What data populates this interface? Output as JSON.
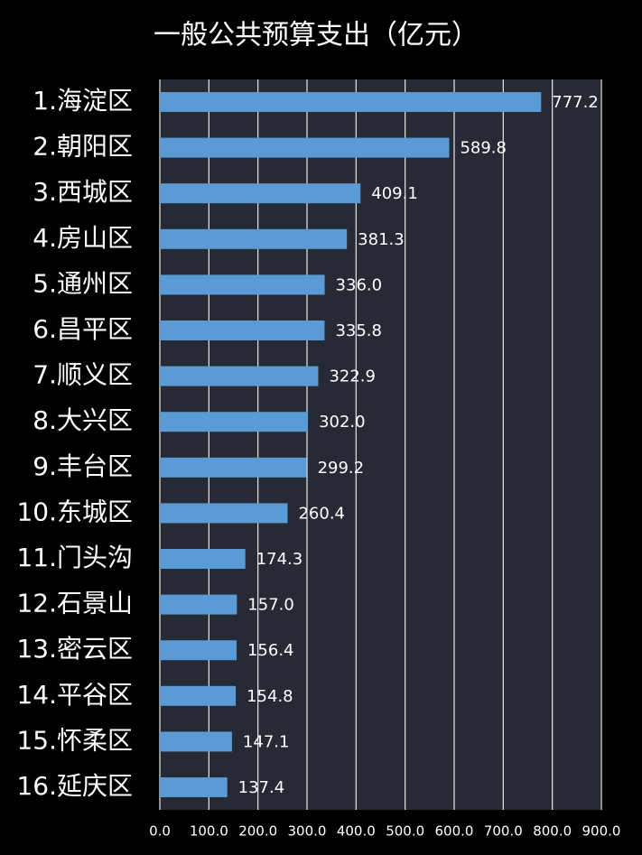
{
  "chart_data": {
    "type": "hbar",
    "title": "一般公共预算支出（亿元）",
    "categories": [
      "1.海淀区",
      "2.朝阳区",
      "3.西城区",
      "4.房山区",
      "5.通州区",
      "6.昌平区",
      "7.顺义区",
      "8.大兴区",
      "9.丰台区",
      "10.东城区",
      "11.门头沟",
      "12.石景山",
      "13.密云区",
      "14.平谷区",
      "15.怀柔区",
      "16.延庆区"
    ],
    "values": [
      777.2,
      589.8,
      409.1,
      381.3,
      336.0,
      335.8,
      322.9,
      302.0,
      299.2,
      260.4,
      174.3,
      157.0,
      156.4,
      154.8,
      147.1,
      137.4
    ],
    "value_labels": [
      "777.2",
      "589.8",
      "409.1",
      "381.3",
      "336.0",
      "335.8",
      "322.9",
      "302.0",
      "299.2",
      "260.4",
      "174.3",
      "157.0",
      "156.4",
      "154.8",
      "147.1",
      "137.4"
    ],
    "color": "#5b9bd5",
    "xlim": [
      0,
      900
    ],
    "xticks": [
      {
        "value": 0,
        "label": "0.0"
      },
      {
        "value": 100,
        "label": "100.0"
      },
      {
        "value": 200,
        "label": "200.0"
      },
      {
        "value": 300,
        "label": "300.0"
      },
      {
        "value": 400,
        "label": "400.0"
      },
      {
        "value": 500,
        "label": "500.0"
      },
      {
        "value": 600,
        "label": "600.0"
      },
      {
        "value": 700,
        "label": "700.0"
      },
      {
        "value": 800,
        "label": "800.0"
      },
      {
        "value": 900,
        "label": "900.0"
      }
    ],
    "grid": true
  }
}
